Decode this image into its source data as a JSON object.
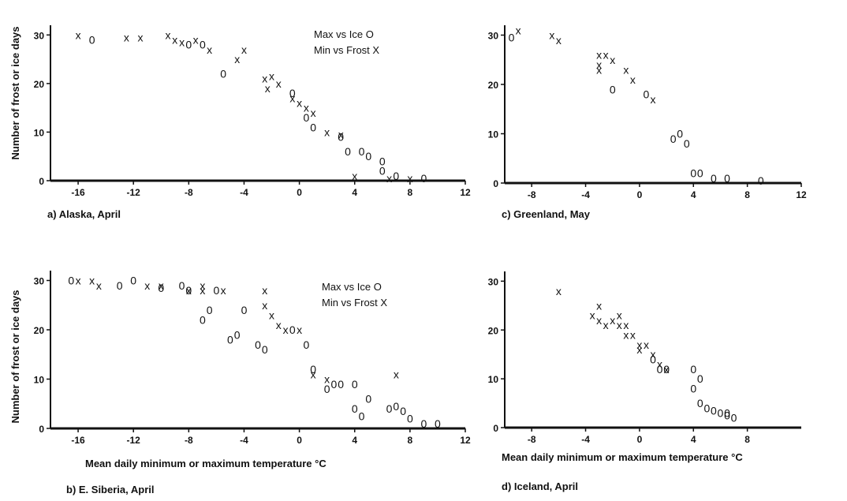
{
  "figure": {
    "y_axis_label": "Number of frost or ice days",
    "x_axis_label": "Mean daily minimum or maximum temperature °C"
  },
  "chart_data": [
    {
      "type": "scatter",
      "caption": "a) Alaska, April",
      "legend": [
        "Max vs Ice O",
        "Min vs Frost X"
      ],
      "xlim": [
        -18,
        12
      ],
      "ylim": [
        0,
        32
      ],
      "x_ticks": [
        -16,
        -12,
        -8,
        -4,
        0,
        4,
        8,
        12
      ],
      "y_ticks": [
        0,
        10,
        20,
        30
      ],
      "series": [
        {
          "marker": "X",
          "points": [
            [
              -16,
              30
            ],
            [
              -12.5,
              29.5
            ],
            [
              -11.5,
              29.5
            ],
            [
              -9.5,
              30
            ],
            [
              -9,
              29
            ],
            [
              -8.5,
              28.5
            ],
            [
              -7.5,
              29
            ],
            [
              -6.5,
              27
            ],
            [
              -4.5,
              25
            ],
            [
              -4,
              27
            ],
            [
              -2.5,
              21
            ],
            [
              -2,
              21.5
            ],
            [
              -2.3,
              19
            ],
            [
              -1.5,
              20
            ],
            [
              -0.5,
              17
            ],
            [
              0,
              16
            ],
            [
              0.5,
              15
            ],
            [
              1,
              14
            ],
            [
              2,
              10
            ],
            [
              3,
              9.5
            ],
            [
              4,
              1
            ],
            [
              6.5,
              0.5
            ],
            [
              8,
              0.5
            ]
          ]
        },
        {
          "marker": "O",
          "points": [
            [
              -15,
              29
            ],
            [
              -8,
              28
            ],
            [
              -7,
              28
            ],
            [
              -5.5,
              22
            ],
            [
              -0.5,
              18
            ],
            [
              0.5,
              13
            ],
            [
              1,
              11
            ],
            [
              3,
              9
            ],
            [
              3.5,
              6
            ],
            [
              4.5,
              6
            ],
            [
              5,
              5
            ],
            [
              6,
              4
            ],
            [
              6,
              2
            ],
            [
              7,
              1
            ],
            [
              9,
              0.5
            ]
          ]
        }
      ]
    },
    {
      "type": "scatter",
      "caption": "c) Greenland, May",
      "legend": [],
      "xlim": [
        -10,
        12
      ],
      "ylim": [
        0,
        32
      ],
      "x_ticks": [
        -8,
        -4,
        0,
        4,
        8,
        12
      ],
      "y_ticks": [
        0,
        10,
        20,
        30
      ],
      "series": [
        {
          "marker": "X",
          "points": [
            [
              -9,
              31
            ],
            [
              -6.5,
              30
            ],
            [
              -6,
              29
            ],
            [
              -3,
              26
            ],
            [
              -3,
              24
            ],
            [
              -3,
              23
            ],
            [
              -2.5,
              26
            ],
            [
              -2,
              25
            ],
            [
              -1,
              23
            ],
            [
              -0.5,
              21
            ],
            [
              1,
              17
            ]
          ]
        },
        {
          "marker": "O",
          "points": [
            [
              -9.5,
              29.5
            ],
            [
              -2,
              19
            ],
            [
              0.5,
              18
            ],
            [
              2.5,
              9
            ],
            [
              3,
              10
            ],
            [
              3.5,
              8
            ],
            [
              4,
              2
            ],
            [
              4.5,
              2
            ],
            [
              5.5,
              1
            ],
            [
              6.5,
              1
            ],
            [
              9,
              0.5
            ]
          ]
        }
      ]
    },
    {
      "type": "scatter",
      "caption": "b) E. Siberia, April",
      "legend": [
        "Max vs Ice O",
        "Min vs Frost X"
      ],
      "xlim": [
        -18,
        12
      ],
      "ylim": [
        0,
        32
      ],
      "x_ticks": [
        -16,
        -12,
        -8,
        -4,
        0,
        4,
        8,
        12
      ],
      "y_ticks": [
        0,
        10,
        20,
        30
      ],
      "series": [
        {
          "marker": "X",
          "points": [
            [
              -16,
              30
            ],
            [
              -15,
              30
            ],
            [
              -14.5,
              29
            ],
            [
              -11,
              29
            ],
            [
              -10,
              29
            ],
            [
              -8,
              28
            ],
            [
              -7,
              28
            ],
            [
              -7,
              29
            ],
            [
              -5.5,
              28
            ],
            [
              -2.5,
              28
            ],
            [
              -2.5,
              25
            ],
            [
              -2,
              23
            ],
            [
              -1.5,
              21
            ],
            [
              -1,
              20
            ],
            [
              0,
              20
            ],
            [
              1,
              11
            ],
            [
              2,
              10
            ],
            [
              7,
              11
            ]
          ]
        },
        {
          "marker": "O",
          "points": [
            [
              -16.5,
              30
            ],
            [
              -13,
              29
            ],
            [
              -12,
              30
            ],
            [
              -10,
              28.5
            ],
            [
              -8.5,
              29
            ],
            [
              -8,
              28
            ],
            [
              -6,
              28
            ],
            [
              -7,
              22
            ],
            [
              -6.5,
              24
            ],
            [
              -4,
              24
            ],
            [
              -5,
              18
            ],
            [
              -4.5,
              19
            ],
            [
              -3,
              17
            ],
            [
              -2.5,
              16
            ],
            [
              -0.5,
              20
            ],
            [
              0.5,
              17
            ],
            [
              1,
              12
            ],
            [
              2,
              8
            ],
            [
              2.5,
              9
            ],
            [
              3,
              9
            ],
            [
              4,
              9
            ],
            [
              4,
              4
            ],
            [
              4.5,
              2.5
            ],
            [
              5,
              6
            ],
            [
              6.5,
              4
            ],
            [
              7,
              4.5
            ],
            [
              7.5,
              3.5
            ],
            [
              8,
              2
            ],
            [
              9,
              1
            ],
            [
              10,
              1
            ]
          ]
        }
      ]
    },
    {
      "type": "scatter",
      "caption": "d) Iceland, April",
      "legend": [],
      "xlim": [
        -10,
        12
      ],
      "ylim": [
        0,
        32
      ],
      "x_ticks": [
        -8,
        -4,
        0,
        4,
        8
      ],
      "y_ticks": [
        0,
        10,
        20,
        30
      ],
      "series": [
        {
          "marker": "X",
          "points": [
            [
              -6,
              28
            ],
            [
              -3,
              25
            ],
            [
              -3.5,
              23
            ],
            [
              -3,
              22
            ],
            [
              -2.5,
              21
            ],
            [
              -2,
              22
            ],
            [
              -1.5,
              23
            ],
            [
              -1.5,
              21
            ],
            [
              -1,
              21
            ],
            [
              -1,
              19
            ],
            [
              -0.5,
              19
            ],
            [
              0,
              17
            ],
            [
              0,
              16
            ],
            [
              0.5,
              17
            ],
            [
              1,
              15
            ],
            [
              1.5,
              13
            ],
            [
              2,
              12
            ]
          ]
        },
        {
          "marker": "O",
          "points": [
            [
              1,
              14
            ],
            [
              1.5,
              12
            ],
            [
              2,
              12
            ],
            [
              4,
              12
            ],
            [
              4.5,
              10
            ],
            [
              4,
              8
            ],
            [
              4.5,
              5
            ],
            [
              5,
              4
            ],
            [
              5.5,
              3.5
            ],
            [
              6,
              3
            ],
            [
              6.5,
              3
            ],
            [
              6.5,
              2.5
            ],
            [
              7,
              2
            ]
          ]
        }
      ]
    }
  ]
}
